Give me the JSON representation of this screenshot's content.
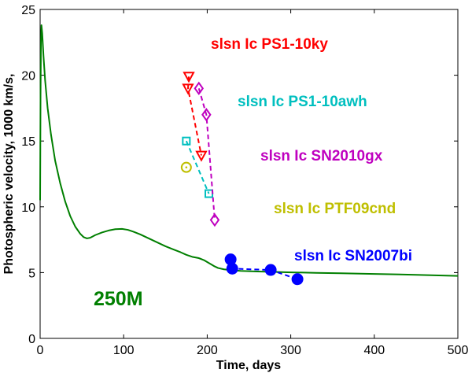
{
  "chart_data": {
    "type": "line",
    "title": "",
    "xlabel": "Time, days",
    "ylabel": "Photospheric velocity, 1000 km/s,",
    "xlim": [
      0,
      500
    ],
    "ylim": [
      0,
      25
    ],
    "xticks": [
      0,
      100,
      200,
      300,
      400,
      500
    ],
    "yticks": [
      0,
      5,
      10,
      15,
      20,
      25
    ],
    "model_label": "250M",
    "model_color": "#007f00",
    "model_curve": {
      "x": [
        0,
        0.5,
        1,
        1.6,
        2.5,
        4,
        6,
        9,
        13,
        18,
        24,
        30,
        36,
        42,
        48,
        52,
        56,
        60,
        66,
        74,
        82,
        90,
        98,
        105,
        112,
        120,
        130,
        140,
        150,
        160,
        168,
        175,
        182,
        190,
        196,
        200,
        204,
        208,
        213,
        220,
        230,
        240,
        260,
        280,
        300,
        330,
        360,
        400,
        450,
        500
      ],
      "y": [
        10.5,
        18.5,
        22.5,
        23.8,
        23.2,
        21.5,
        19.6,
        17.5,
        15.5,
        13.5,
        11.8,
        10.4,
        9.3,
        8.5,
        7.95,
        7.7,
        7.6,
        7.65,
        7.85,
        8.05,
        8.2,
        8.3,
        8.32,
        8.25,
        8.1,
        7.9,
        7.6,
        7.3,
        7.0,
        6.75,
        6.55,
        6.35,
        6.2,
        6.1,
        5.95,
        5.8,
        5.65,
        5.5,
        5.35,
        5.25,
        5.18,
        5.13,
        5.08,
        5.05,
        5.02,
        4.98,
        4.95,
        4.9,
        4.83,
        4.75
      ]
    },
    "series": [
      {
        "name": "slsn Ic PS1-10ky",
        "color": "#ff0000",
        "marker": "triangle-down",
        "x": [
          178,
          177,
          193
        ],
        "y": [
          19.9,
          19.0,
          13.9
        ]
      },
      {
        "name": "slsn Ic PS1-10awh",
        "color": "#00bfbf",
        "marker": "square",
        "x": [
          175,
          202
        ],
        "y": [
          15.0,
          11.0
        ]
      },
      {
        "name": "slsn Ic SN2010gx",
        "color": "#bf00bf",
        "marker": "diamond",
        "x": [
          190,
          199,
          209
        ],
        "y": [
          19.0,
          17.0,
          9.0
        ]
      },
      {
        "name": "slsn Ic PTF09cnd",
        "color": "#bfbf00",
        "marker": "circle-dot",
        "x": [
          175
        ],
        "y": [
          13.0
        ]
      },
      {
        "name": "slsn Ic SN2007bi",
        "color": "#0000ff",
        "marker": "filled-circle",
        "x": [
          228,
          230,
          276,
          308
        ],
        "y": [
          6.0,
          5.3,
          5.2,
          4.5
        ]
      }
    ]
  }
}
